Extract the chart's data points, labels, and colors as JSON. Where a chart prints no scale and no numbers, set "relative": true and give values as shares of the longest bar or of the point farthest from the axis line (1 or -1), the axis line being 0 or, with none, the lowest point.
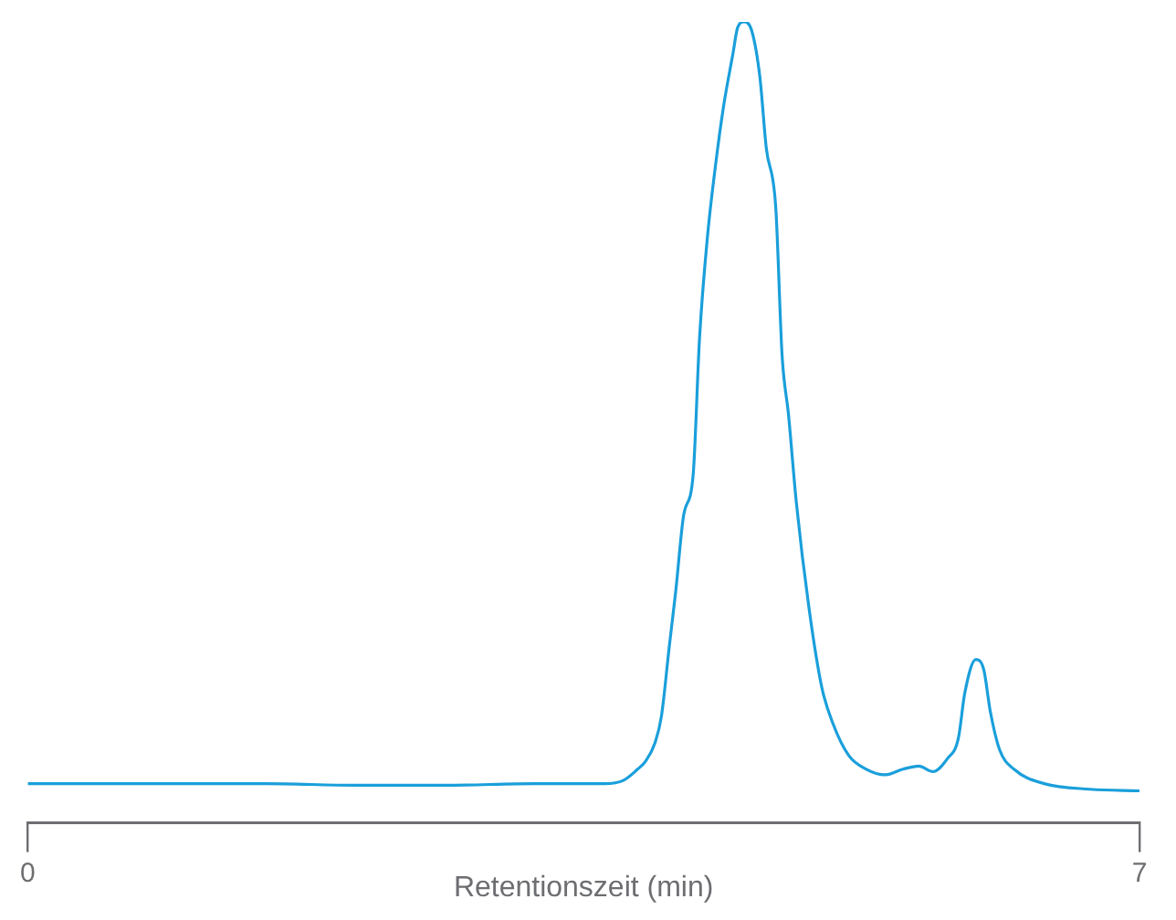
{
  "chart_data": {
    "type": "line",
    "xlabel": "Retentionszeit (min)",
    "relative": true,
    "xlim": [
      0,
      7
    ],
    "xticks": [
      0,
      7
    ],
    "grid": false,
    "legend": false,
    "marker": "none",
    "line_style": "solid",
    "x": [
      0,
      0.39,
      0.95,
      1.5,
      2.07,
      2.63,
      3.19,
      3.63,
      3.75,
      3.84,
      3.89,
      3.95,
      3.99,
      4.04,
      4.08,
      4.13,
      4.19,
      4.23,
      4.28,
      4.33,
      4.38,
      4.44,
      4.47,
      4.51,
      4.56,
      4.61,
      4.65,
      4.71,
      4.75,
      4.79,
      4.84,
      4.92,
      5.0,
      5.07,
      5.17,
      5.28,
      5.4,
      5.51,
      5.61,
      5.7,
      5.79,
      5.86,
      5.9,
      5.97,
      6.02,
      6.06,
      6.12,
      6.21,
      6.4,
      6.69,
      7.0
    ],
    "series": [
      {
        "color": "#1a9fdb",
        "values": [
          0.049,
          0.049,
          0.049,
          0.049,
          0.047,
          0.047,
          0.049,
          0.049,
          0.053,
          0.067,
          0.077,
          0.1,
          0.133,
          0.221,
          0.289,
          0.384,
          0.435,
          0.605,
          0.732,
          0.82,
          0.893,
          0.96,
          0.993,
          1,
          0.988,
          0.931,
          0.843,
          0.768,
          0.583,
          0.51,
          0.399,
          0.267,
          0.169,
          0.124,
          0.084,
          0.067,
          0.06,
          0.067,
          0.071,
          0.064,
          0.08,
          0.106,
          0.162,
          0.204,
          0.191,
          0.14,
          0.091,
          0.067,
          0.049,
          0.042,
          0.04
        ]
      }
    ]
  }
}
